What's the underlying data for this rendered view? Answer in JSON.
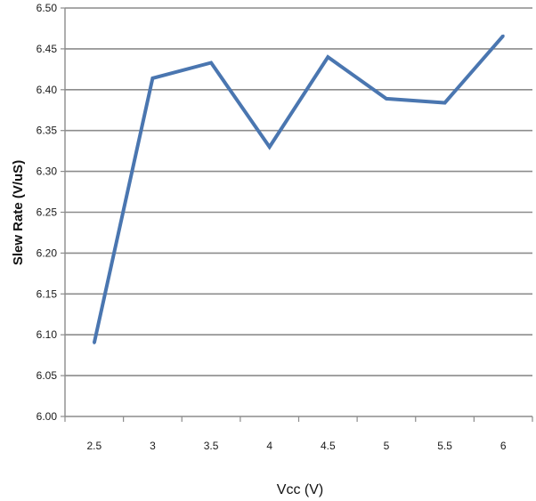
{
  "chart_data": {
    "type": "line",
    "title": "",
    "xlabel": "Vcc (V)",
    "ylabel": "Slew Rate (V/uS)",
    "categories": [
      "2.5",
      "3",
      "3.5",
      "4",
      "4.5",
      "5",
      "5.5",
      "6"
    ],
    "series": [
      {
        "values": [
          6.09,
          6.414,
          6.433,
          6.33,
          6.44,
          6.389,
          6.384,
          6.466
        ],
        "color": "#4a76b0"
      }
    ],
    "ylim": [
      6.0,
      6.5
    ],
    "yticks": [
      "6.00",
      "6.05",
      "6.10",
      "6.15",
      "6.20",
      "6.25",
      "6.30",
      "6.35",
      "6.40",
      "6.45",
      "6.50"
    ],
    "grid": "horizontal",
    "legend": "none"
  },
  "colors": {
    "gridline": "#8c8c8c",
    "axis": "#8c8c8c",
    "line": "#4a76b0"
  }
}
